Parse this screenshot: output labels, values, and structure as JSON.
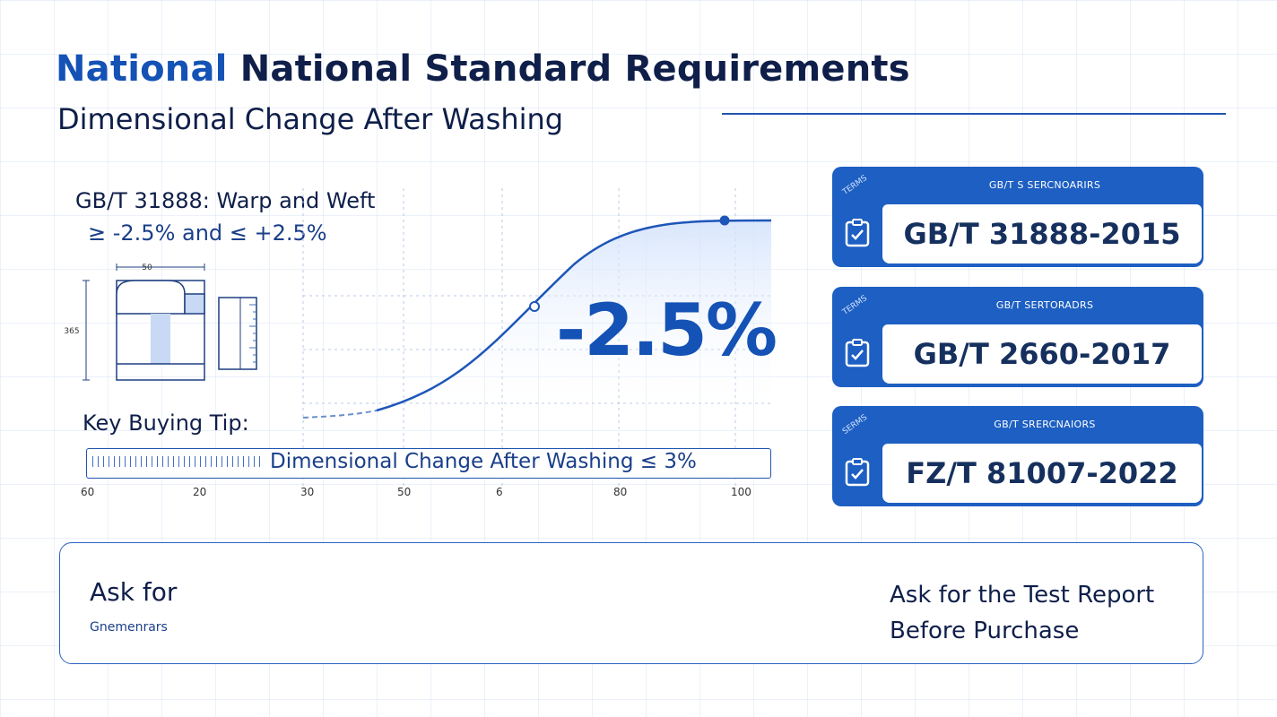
{
  "header": {
    "title_accent": "National",
    "title_rest": "National Standard Requirements",
    "subtitle": "Dimensional Change After Washing"
  },
  "spec": {
    "line1": "GB/T 31888: Warp and Weft",
    "line2": "≥ -2.5% and ≤ +2.5%"
  },
  "diagram": {
    "width_label": "50",
    "height_label": "365"
  },
  "highlight": {
    "value_text": "-2.5%"
  },
  "tip": {
    "label": "Key Buying Tip:",
    "text": "Dimensional Change After Washing ≤ 3%"
  },
  "axis_ticks": [
    "60",
    "20",
    "30",
    "50",
    "6",
    "80",
    "100"
  ],
  "standards": [
    {
      "side": "TERMS",
      "header": "GB/T S SERCNOARIRS",
      "code": "GB/T 31888-2015"
    },
    {
      "side": "TERMS",
      "header": "GB/T SERTORADRS",
      "code": "GB/T 2660-2017"
    },
    {
      "side": "SERMS",
      "header": "GB/T SRERCNAIORS",
      "code": "FZ/T 81007-2022"
    }
  ],
  "footer": {
    "ask_for": "Ask for",
    "ask_sub": "Gnemenrars",
    "report_line1": "Ask for the Test Report",
    "report_line2": "Before Purchase"
  },
  "icons": {
    "flow": [
      "percent-icon",
      "clipboard-add-icon",
      "document-percent-icon",
      "arrow-right-icon",
      "pencil-percent-icon",
      "checklist-clipboard-icon"
    ]
  },
  "colors": {
    "primary": "#1d5fc2",
    "accent": "#1452b5",
    "text": "#0f1f4a"
  }
}
